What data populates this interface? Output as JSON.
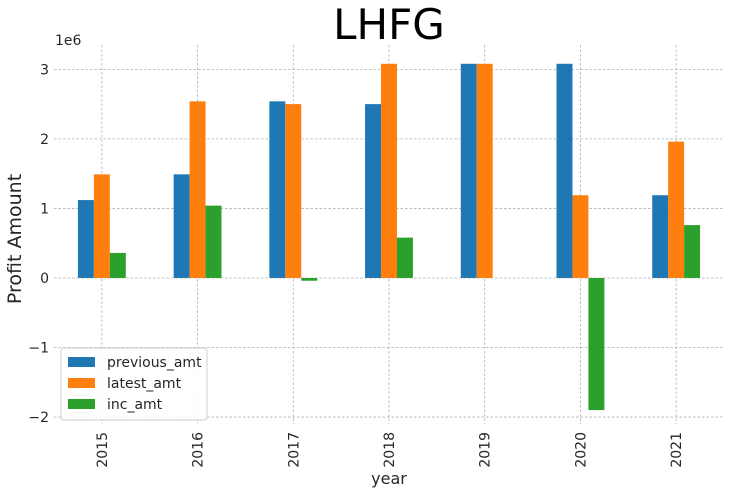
{
  "chart_data": {
    "type": "bar",
    "title": "LHFG",
    "xlabel": "year",
    "ylabel": "Profit Amount",
    "y_offset_text": "1e6",
    "categories": [
      "2015",
      "2016",
      "2017",
      "2018",
      "2019",
      "2020",
      "2021"
    ],
    "ylim": [
      -2100000,
      3350000
    ],
    "yticks": [
      -2000000,
      -1000000,
      0,
      1000000,
      2000000,
      3000000
    ],
    "ytick_labels": [
      "−2",
      "−1",
      "0",
      "1",
      "2",
      "3"
    ],
    "grid": true,
    "legend_position": "lower-left",
    "series": [
      {
        "name": "previous_amt",
        "color": "#1f77b4",
        "values": [
          1120000,
          1490000,
          2540000,
          2500000,
          3080000,
          3080000,
          1190000
        ]
      },
      {
        "name": "latest_amt",
        "color": "#ff7f0e",
        "values": [
          1490000,
          2540000,
          2500000,
          3080000,
          3080000,
          1190000,
          1960000
        ]
      },
      {
        "name": "inc_amt",
        "color": "#2ca02c",
        "values": [
          360000,
          1040000,
          -40000,
          580000,
          0,
          -1900000,
          760000
        ]
      }
    ]
  }
}
